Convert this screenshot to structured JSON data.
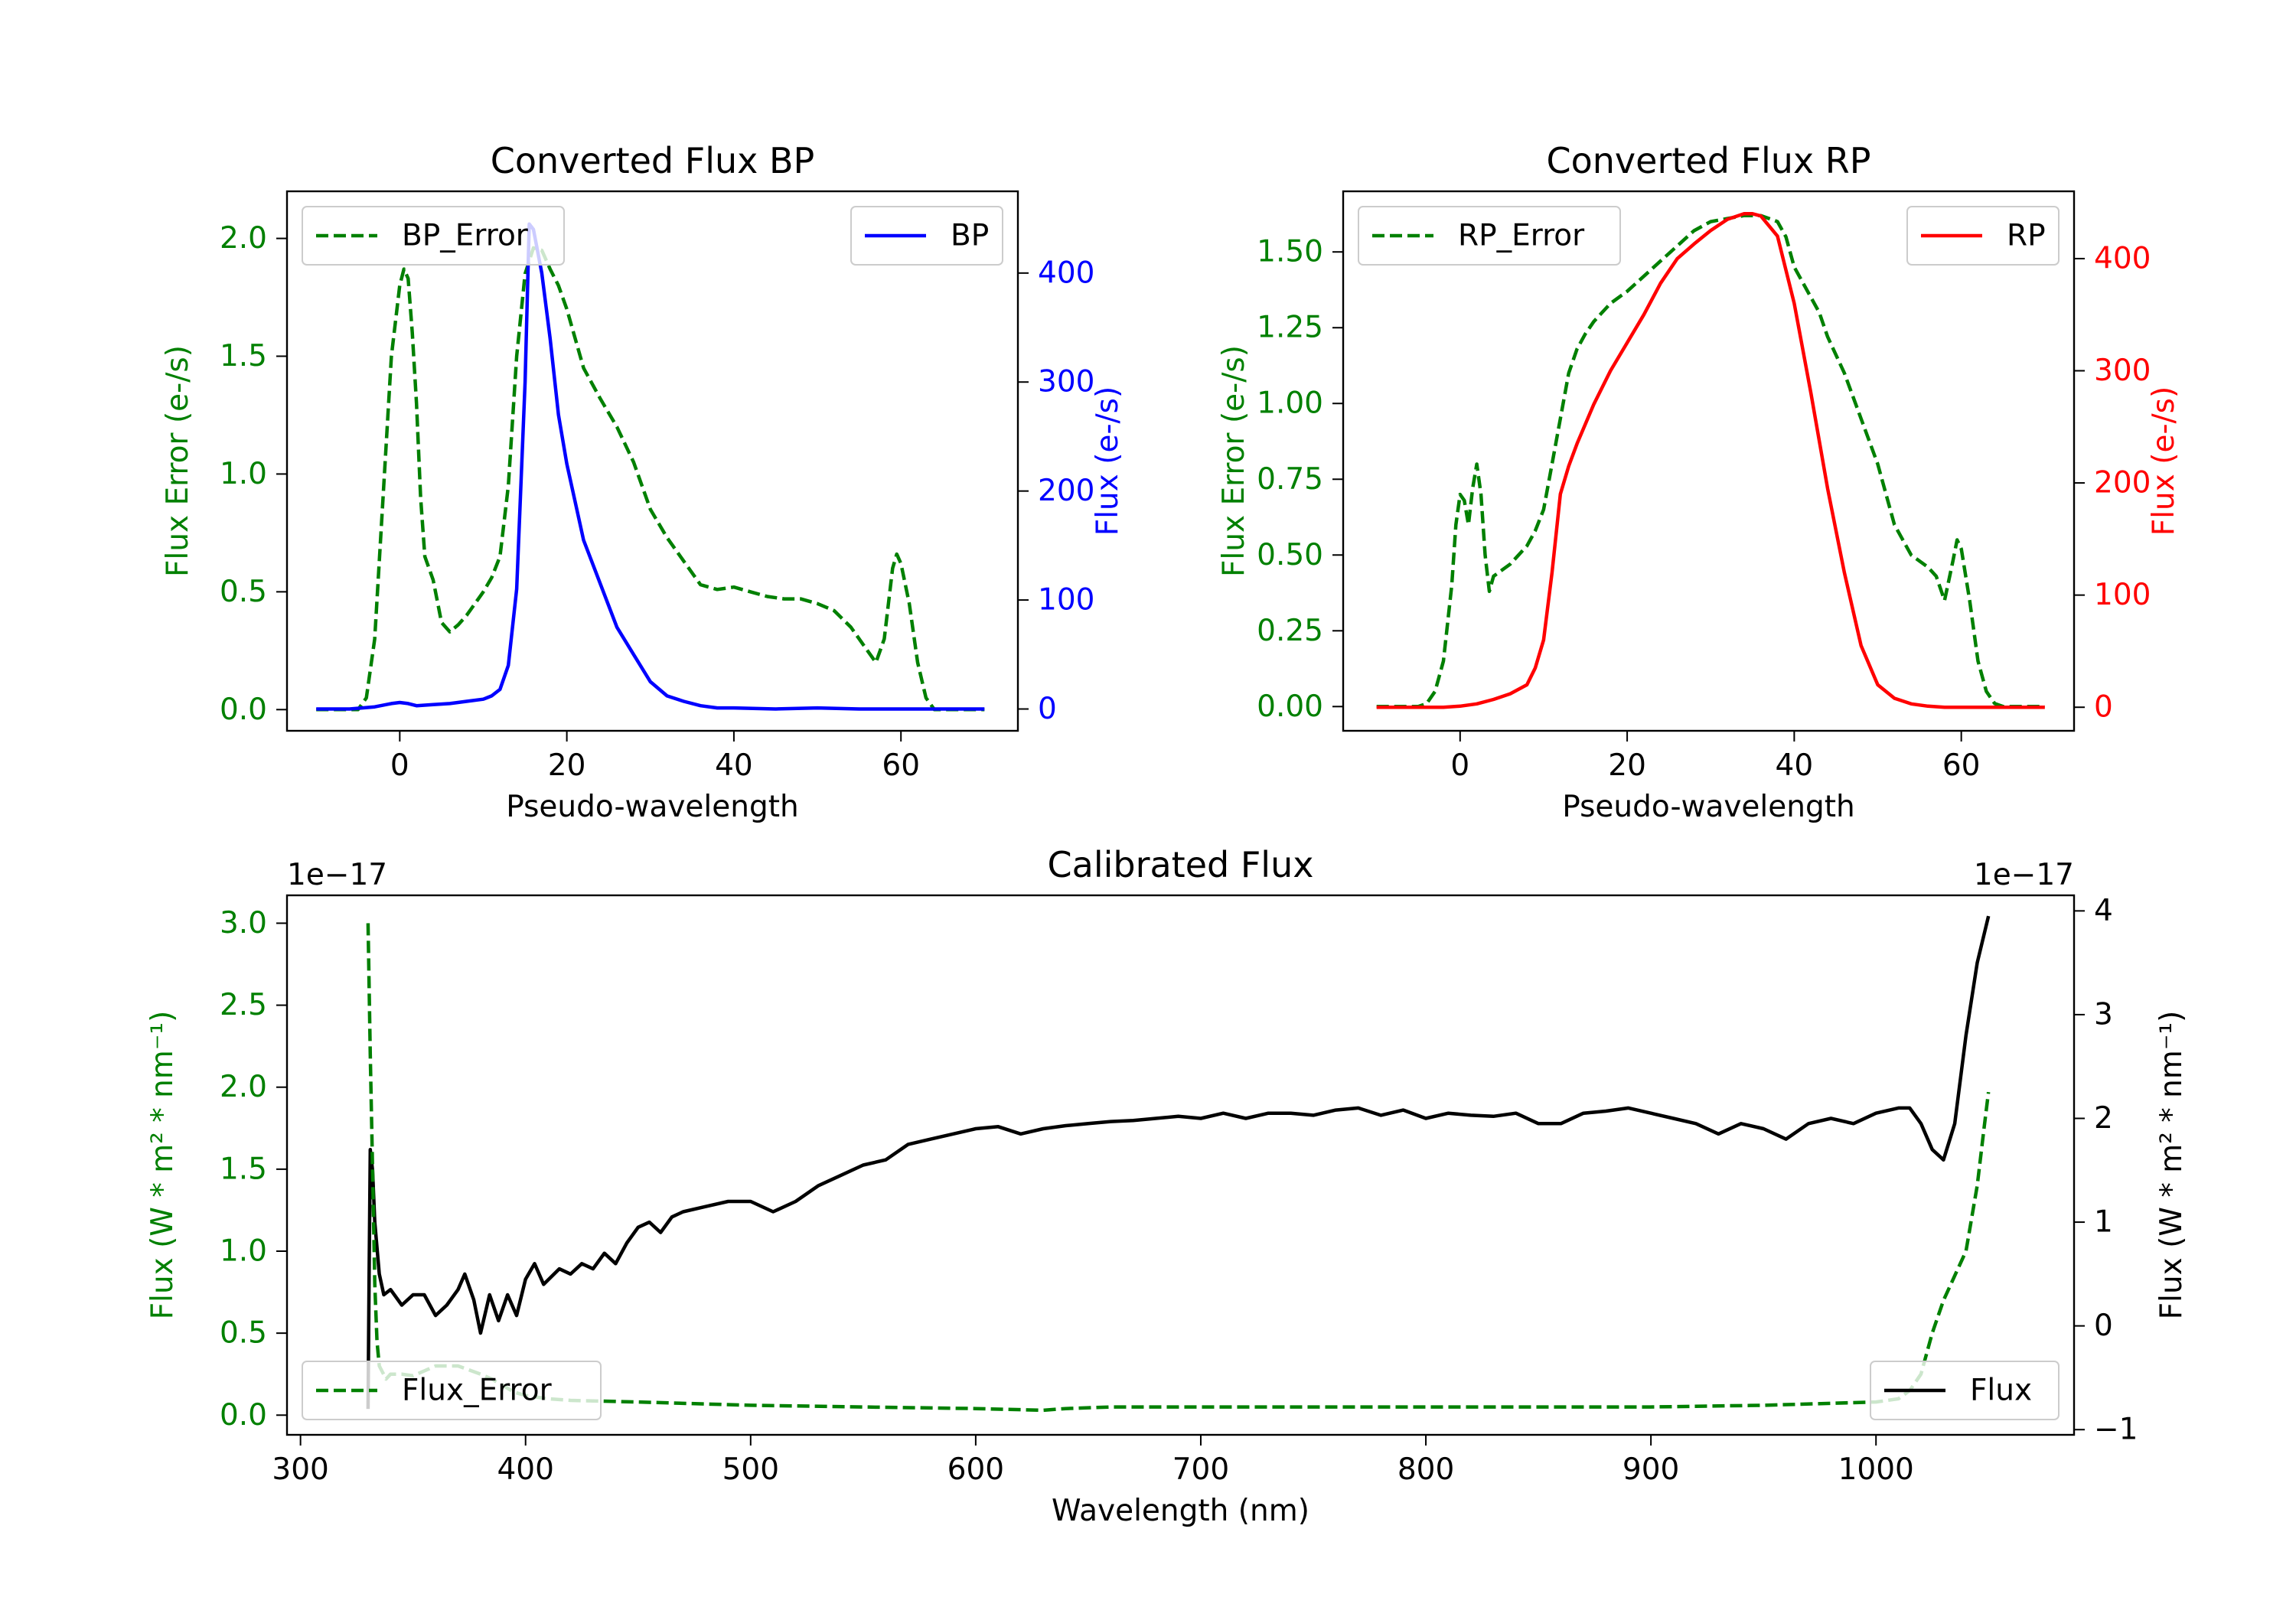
{
  "chart_data": [
    {
      "type": "line",
      "title": "Converted Flux BP",
      "xlabel": "Pseudo-wavelength",
      "ylabel_left": "Flux Error (e-/s)",
      "ylabel_right": "Flux (e-/s)",
      "xlim": [
        -13.5,
        74
      ],
      "ylim_left": [
        -0.09,
        2.2
      ],
      "ylim_right": [
        -20,
        475
      ],
      "xticks": [
        0,
        20,
        40,
        60
      ],
      "yticks_left": [
        0.0,
        0.5,
        1.0,
        1.5,
        2.0
      ],
      "yticks_right": [
        0,
        100,
        200,
        300,
        400
      ],
      "yticklabels_left": [
        "0.0",
        "0.5",
        "1.0",
        "1.5",
        "2.0"
      ],
      "legend_left": "top-left",
      "legend_right": "top-right",
      "colors": {
        "left": "#008000",
        "right": "#0000ff"
      },
      "series": [
        {
          "name": "BP_Error",
          "axis": "left",
          "color": "#008000",
          "style": "dashed",
          "x": [
            -10,
            -5,
            -4,
            -3,
            -2,
            -1,
            0,
            0.5,
            1,
            1.5,
            2,
            2.5,
            3,
            4,
            5,
            6,
            7,
            8,
            9,
            10,
            11,
            12,
            13,
            14,
            15,
            16,
            17,
            18,
            19,
            20,
            22,
            24,
            26,
            28,
            30,
            32,
            34,
            36,
            38,
            40,
            42,
            44,
            46,
            48,
            50,
            52,
            54,
            56,
            57,
            58,
            59,
            59.5,
            60,
            61,
            62,
            63,
            64,
            66,
            70
          ],
          "y": [
            0,
            0,
            0.05,
            0.3,
            0.9,
            1.5,
            1.8,
            1.87,
            1.83,
            1.6,
            1.3,
            0.9,
            0.65,
            0.55,
            0.37,
            0.33,
            0.36,
            0.4,
            0.45,
            0.5,
            0.56,
            0.65,
            0.95,
            1.5,
            1.85,
            1.96,
            1.95,
            1.87,
            1.8,
            1.7,
            1.45,
            1.32,
            1.2,
            1.05,
            0.85,
            0.73,
            0.63,
            0.53,
            0.51,
            0.52,
            0.5,
            0.48,
            0.47,
            0.47,
            0.45,
            0.42,
            0.35,
            0.25,
            0.2,
            0.3,
            0.6,
            0.66,
            0.62,
            0.45,
            0.2,
            0.05,
            0,
            0,
            0
          ]
        },
        {
          "name": "BP",
          "axis": "right",
          "color": "#0000ff",
          "style": "solid",
          "x": [
            -10,
            -6,
            -3,
            -1,
            0,
            1,
            2,
            4,
            6,
            8,
            10,
            11,
            12,
            13,
            14,
            15,
            15.5,
            16,
            17,
            18,
            19,
            20,
            22,
            24,
            26,
            28,
            30,
            32,
            34,
            36,
            38,
            40,
            45,
            50,
            55,
            60,
            65,
            70
          ],
          "y": [
            0,
            0,
            2,
            5,
            6,
            5,
            3,
            4,
            5,
            7,
            9,
            12,
            18,
            40,
            110,
            300,
            445,
            440,
            400,
            340,
            270,
            225,
            155,
            115,
            75,
            50,
            25,
            12,
            7,
            3,
            1,
            1,
            0,
            1,
            0,
            0,
            0,
            0
          ]
        }
      ]
    },
    {
      "type": "line",
      "title": "Converted Flux RP",
      "xlabel": "Pseudo-wavelength",
      "ylabel_left": "Flux Error (e-/s)",
      "ylabel_right": "Flux (e-/s)",
      "xlim": [
        -14,
        73.5
      ],
      "ylim_left": [
        -0.08,
        1.7
      ],
      "ylim_right": [
        -21,
        460
      ],
      "xticks": [
        0,
        20,
        40,
        60
      ],
      "yticks_left": [
        0.0,
        0.25,
        0.5,
        0.75,
        1.0,
        1.25,
        1.5
      ],
      "yticks_right": [
        0,
        100,
        200,
        300,
        400
      ],
      "yticklabels_left": [
        "0.00",
        "0.25",
        "0.50",
        "0.75",
        "1.00",
        "1.25",
        "1.50"
      ],
      "legend_left": "top-left",
      "legend_right": "top-right",
      "colors": {
        "left": "#008000",
        "right": "#ff0000"
      },
      "series": [
        {
          "name": "RP_Error",
          "axis": "left",
          "color": "#008000",
          "style": "dashed",
          "x": [
            -10,
            -5,
            -4,
            -3,
            -2,
            -1,
            -0.5,
            0,
            0.5,
            1,
            1.5,
            2,
            2.5,
            3,
            3.5,
            4,
            5,
            6,
            7,
            8,
            9,
            10,
            11,
            12,
            13,
            14,
            15,
            16,
            17,
            18,
            20,
            22,
            24,
            26,
            28,
            30,
            32,
            34,
            36,
            38,
            39,
            40,
            41,
            42,
            43,
            44,
            46,
            48,
            50,
            52,
            54,
            56,
            57,
            58,
            59,
            59.5,
            60,
            61,
            62,
            63,
            64,
            65,
            70
          ],
          "y": [
            0,
            0,
            0.01,
            0.05,
            0.15,
            0.4,
            0.6,
            0.7,
            0.68,
            0.6,
            0.72,
            0.8,
            0.7,
            0.5,
            0.38,
            0.43,
            0.45,
            0.47,
            0.5,
            0.53,
            0.58,
            0.65,
            0.8,
            0.95,
            1.1,
            1.18,
            1.23,
            1.27,
            1.3,
            1.33,
            1.37,
            1.42,
            1.47,
            1.52,
            1.57,
            1.6,
            1.61,
            1.62,
            1.62,
            1.6,
            1.55,
            1.45,
            1.4,
            1.35,
            1.3,
            1.22,
            1.1,
            0.95,
            0.8,
            0.6,
            0.5,
            0.46,
            0.43,
            0.35,
            0.48,
            0.55,
            0.52,
            0.35,
            0.15,
            0.05,
            0.01,
            0,
            0
          ]
        },
        {
          "name": "RP",
          "axis": "right",
          "color": "#ff0000",
          "style": "solid",
          "x": [
            -10,
            -2,
            0,
            2,
            4,
            6,
            8,
            9,
            10,
            11,
            12,
            13,
            14,
            16,
            18,
            20,
            22,
            24,
            26,
            28,
            30,
            32,
            34,
            35,
            36,
            38,
            40,
            42,
            44,
            46,
            48,
            50,
            52,
            54,
            56,
            58,
            60,
            65,
            70
          ],
          "y": [
            0,
            0,
            1,
            3,
            7,
            12,
            20,
            35,
            60,
            120,
            190,
            215,
            235,
            270,
            300,
            325,
            350,
            378,
            400,
            413,
            425,
            435,
            440,
            440,
            438,
            420,
            360,
            280,
            195,
            120,
            55,
            20,
            8,
            3,
            1,
            0,
            0,
            0,
            0
          ]
        }
      ]
    },
    {
      "type": "line",
      "title": "Calibrated Flux",
      "xlabel": "Wavelength (nm)",
      "ylabel_left": "Flux (W * m² * nm⁻¹)",
      "ylabel_right": "Flux (W * m² * nm⁻¹)",
      "offset_left": "1e−17",
      "offset_right": "1e−17",
      "xlim": [
        294,
        1088
      ],
      "ylim_left": [
        -0.12,
        3.17
      ],
      "ylim_right": [
        -1.05,
        4.15
      ],
      "xticks": [
        300,
        400,
        500,
        600,
        700,
        800,
        900,
        1000
      ],
      "yticks_left": [
        0.0,
        0.5,
        1.0,
        1.5,
        2.0,
        2.5,
        3.0
      ],
      "yticks_right": [
        -1,
        0,
        1,
        2,
        3,
        4
      ],
      "yticklabels_left": [
        "0.0",
        "0.5",
        "1.0",
        "1.5",
        "2.0",
        "2.5",
        "3.0"
      ],
      "yticklabels_right": [
        "−1",
        "0",
        "1",
        "2",
        "3",
        "4"
      ],
      "legend_left": "bottom-left",
      "legend_right": "bottom-right",
      "colors": {
        "left": "#008000",
        "right": "#000000"
      },
      "series": [
        {
          "name": "Flux",
          "axis": "right",
          "color": "#000000",
          "style": "solid",
          "x": [
            330,
            330.5,
            331,
            332,
            333,
            335,
            337,
            340,
            345,
            350,
            355,
            360,
            365,
            370,
            373,
            377,
            380,
            384,
            388,
            392,
            396,
            400,
            404,
            408,
            415,
            420,
            425,
            430,
            435,
            440,
            445,
            450,
            455,
            460,
            465,
            470,
            480,
            490,
            500,
            510,
            520,
            530,
            540,
            550,
            560,
            570,
            580,
            590,
            600,
            610,
            620,
            630,
            640,
            650,
            660,
            670,
            680,
            690,
            700,
            710,
            720,
            730,
            740,
            750,
            760,
            770,
            780,
            790,
            800,
            810,
            820,
            830,
            840,
            850,
            860,
            870,
            880,
            890,
            900,
            910,
            920,
            930,
            940,
            950,
            960,
            970,
            980,
            990,
            1000,
            1010,
            1015,
            1020,
            1025,
            1030,
            1035,
            1040,
            1045,
            1050
          ],
          "y": [
            -0.8,
            0.5,
            1.7,
            1.5,
            1.0,
            0.5,
            0.3,
            0.35,
            0.2,
            0.3,
            0.3,
            0.1,
            0.2,
            0.35,
            0.5,
            0.25,
            -0.07,
            0.3,
            0.05,
            0.3,
            0.1,
            0.45,
            0.6,
            0.4,
            0.55,
            0.5,
            0.6,
            0.55,
            0.7,
            0.6,
            0.8,
            0.95,
            1.0,
            0.9,
            1.05,
            1.1,
            1.15,
            1.2,
            1.2,
            1.1,
            1.2,
            1.35,
            1.45,
            1.55,
            1.6,
            1.75,
            1.8,
            1.85,
            1.9,
            1.92,
            1.85,
            1.9,
            1.93,
            1.95,
            1.97,
            1.98,
            2.0,
            2.02,
            2.0,
            2.05,
            2.0,
            2.05,
            2.05,
            2.03,
            2.08,
            2.1,
            2.03,
            2.08,
            2.0,
            2.05,
            2.03,
            2.02,
            2.05,
            1.95,
            1.95,
            2.05,
            2.07,
            2.1,
            2.05,
            2.0,
            1.95,
            1.85,
            1.95,
            1.9,
            1.8,
            1.95,
            2.0,
            1.95,
            2.05,
            2.1,
            2.1,
            1.95,
            1.7,
            1.6,
            1.95,
            2.8,
            3.5,
            3.95
          ]
        },
        {
          "name": "Flux_Error",
          "axis": "left",
          "color": "#008000",
          "style": "dashed",
          "x": [
            330,
            331,
            332,
            333,
            334,
            335,
            338,
            340,
            345,
            350,
            360,
            370,
            380,
            385,
            390,
            395,
            400,
            410,
            420,
            450,
            500,
            550,
            600,
            630,
            640,
            660,
            700,
            750,
            800,
            850,
            900,
            950,
            1000,
            1010,
            1015,
            1020,
            1025,
            1030,
            1035,
            1040,
            1045,
            1048,
            1050
          ],
          "y": [
            3.0,
            2.2,
            1.5,
            0.8,
            0.45,
            0.3,
            0.22,
            0.25,
            0.25,
            0.24,
            0.3,
            0.3,
            0.25,
            0.22,
            0.18,
            0.14,
            0.12,
            0.1,
            0.09,
            0.08,
            0.06,
            0.05,
            0.04,
            0.03,
            0.04,
            0.05,
            0.05,
            0.05,
            0.05,
            0.05,
            0.05,
            0.06,
            0.08,
            0.1,
            0.15,
            0.25,
            0.5,
            0.7,
            0.85,
            1.0,
            1.4,
            1.75,
            1.97
          ]
        }
      ]
    }
  ]
}
